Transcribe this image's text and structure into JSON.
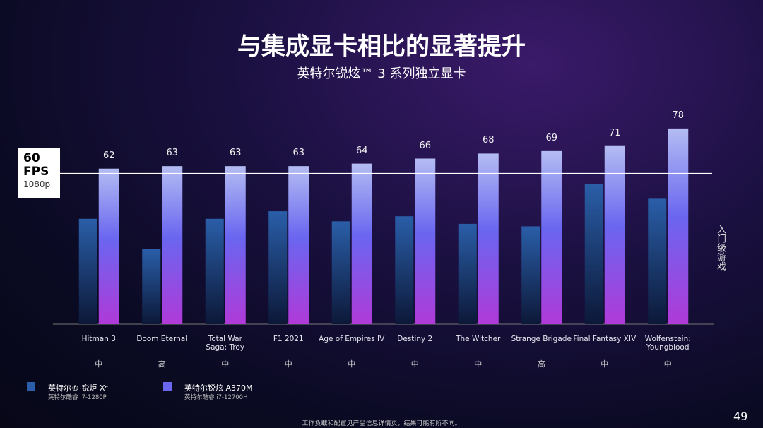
{
  "chart_data": {
    "type": "bar",
    "title": "与集成显卡相比的显著提升",
    "subtitle": "英特尔锐炫™ 3 系列独立显卡",
    "categories": [
      "Hitman 3",
      "Doom Eternal",
      "Total War\nSaga: Troy",
      "F1 2021",
      "Age of Empires IV",
      "Destiny 2",
      "The Witcher",
      "Strange Brigade",
      "Final Fantasy XIV",
      "Wolfenstein:\nYoungblood"
    ],
    "quality": [
      "中",
      "高",
      "中",
      "中",
      "中",
      "中",
      "中",
      "高",
      "中",
      "中"
    ],
    "series": [
      {
        "name": "英特尔® 锐炬 Xᵉ",
        "detail": "英特尔酷睿 i7-1280P",
        "color": "#2a5ea8",
        "values": [
          42,
          30,
          42,
          45,
          41,
          43,
          40,
          39,
          56,
          50
        ]
      },
      {
        "name": "英特尔锐炫 A370M",
        "detail": "英特尔酷睿 i7-12700H",
        "color": "#6a66f0",
        "values": [
          62,
          63,
          63,
          63,
          64,
          66,
          68,
          69,
          71,
          78
        ],
        "show_labels": true
      }
    ],
    "ylim": [
      0,
      85
    ],
    "reference_line": {
      "value": 60,
      "unit": "FPS",
      "resolution": "1080p"
    },
    "side_label": "入门级游戏",
    "footnote": "工作负载和配置见产品信息详情页，结果可能有所不同。",
    "page_number": "49"
  }
}
